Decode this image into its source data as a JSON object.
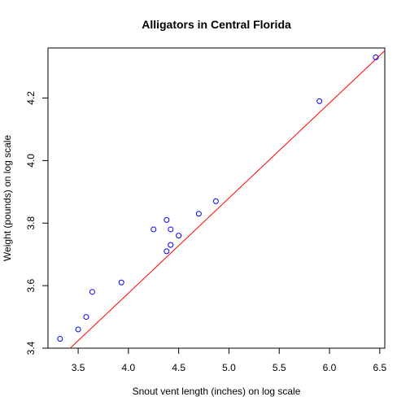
{
  "chart_data": {
    "type": "scatter",
    "title": "Alligators in Central Florida",
    "xlabel": "Snout vent length (inches) on log scale",
    "ylabel": "Weight (pounds) on log scale",
    "xlim": [
      3.2,
      6.55
    ],
    "ylim": [
      3.4,
      4.36
    ],
    "xticks": [
      3.5,
      4.0,
      4.5,
      5.0,
      5.5,
      6.0,
      6.5
    ],
    "yticks": [
      3.4,
      3.6,
      3.8,
      4.0,
      4.2
    ],
    "xtick_labels": [
      "3.5",
      "4.0",
      "4.5",
      "5.0",
      "5.5",
      "6.0",
      "6.5"
    ],
    "ytick_labels": [
      "3.4",
      "3.6",
      "3.8",
      "4.0",
      "4.2"
    ],
    "points": [
      {
        "x": 3.32,
        "y": 3.43
      },
      {
        "x": 3.5,
        "y": 3.46
      },
      {
        "x": 3.58,
        "y": 3.5
      },
      {
        "x": 3.64,
        "y": 3.58
      },
      {
        "x": 3.93,
        "y": 3.61
      },
      {
        "x": 4.25,
        "y": 3.78
      },
      {
        "x": 4.38,
        "y": 3.81
      },
      {
        "x": 4.42,
        "y": 3.78
      },
      {
        "x": 4.38,
        "y": 3.71
      },
      {
        "x": 4.42,
        "y": 3.73
      },
      {
        "x": 4.5,
        "y": 3.76
      },
      {
        "x": 4.7,
        "y": 3.83
      },
      {
        "x": 4.87,
        "y": 3.87
      },
      {
        "x": 5.9,
        "y": 4.19
      },
      {
        "x": 6.46,
        "y": 4.33
      }
    ],
    "fit_line": {
      "intercept": 2.36,
      "slope": 0.304
    },
    "colors": {
      "points": "#0000ff",
      "line": "#ff0000",
      "axes": "#000000"
    },
    "grid": false
  }
}
